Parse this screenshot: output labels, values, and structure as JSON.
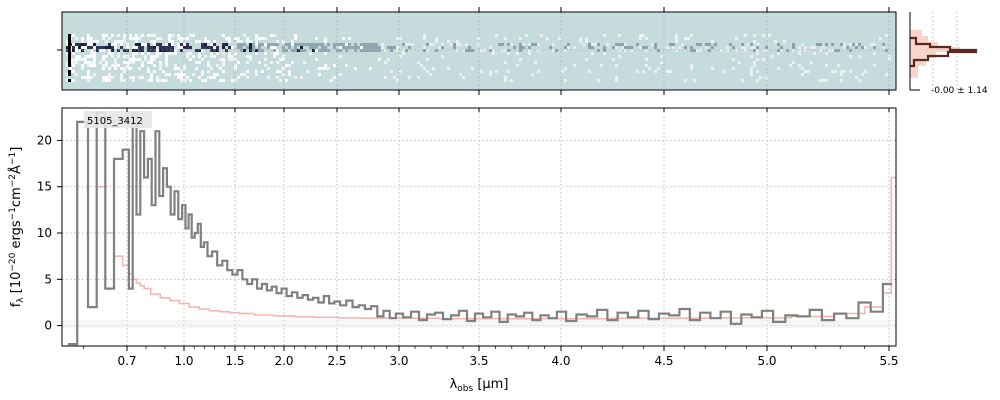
{
  "chart_data": {
    "type": "line",
    "object_label": "5105_3412",
    "xlabel": "λobs [μm]",
    "ylabel": "fλ [10−20 ergs−1cm−2Å−1]",
    "x_scale": "nonlinear (sqrt-like)",
    "xlim": [
      0.55,
      5.53
    ],
    "ylim": [
      -2.2,
      23.5
    ],
    "x_ticks": [
      0.7,
      1.0,
      1.5,
      2.0,
      2.5,
      3.0,
      3.5,
      4.0,
      4.5,
      5.0,
      5.5
    ],
    "x_tick_labels": [
      "0.7",
      "1.0",
      "1.5",
      "2.0",
      "2.5",
      "3.0",
      "3.5",
      "4.0",
      "4.5",
      "5.0",
      "5.5"
    ],
    "y_ticks": [
      0,
      5,
      10,
      15,
      20
    ],
    "y_tick_labels": [
      "0",
      "5",
      "10",
      "15",
      "20"
    ],
    "grid": true,
    "colors": {
      "flux": "#808080",
      "error": "#f4a9a4",
      "spectrum2d_bg": "#c6dbdb",
      "profile": "#5a2a22",
      "profile_fill": "#f7c9bd"
    },
    "series": [
      {
        "style": "steps",
        "color": "#808080",
        "x": [
          0.57,
          0.6,
          0.62,
          0.64,
          0.66,
          0.68,
          0.7,
          0.72,
          0.74,
          0.76,
          0.78,
          0.8,
          0.82,
          0.84,
          0.86,
          0.88,
          0.9,
          0.92,
          0.94,
          0.96,
          0.98,
          1.0,
          1.03,
          1.06,
          1.09,
          1.12,
          1.15,
          1.18,
          1.21,
          1.25,
          1.3,
          1.35,
          1.4,
          1.45,
          1.5,
          1.55,
          1.6,
          1.65,
          1.7,
          1.75,
          1.8,
          1.85,
          1.9,
          1.95,
          2.0,
          2.05,
          2.1,
          2.15,
          2.2,
          2.25,
          2.3,
          2.35,
          2.4,
          2.45,
          2.5,
          2.55,
          2.6,
          2.65,
          2.7,
          2.75,
          2.8,
          2.85,
          2.9,
          2.95,
          3.0,
          3.05,
          3.1,
          3.15,
          3.2,
          3.25,
          3.3,
          3.35,
          3.4,
          3.45,
          3.5,
          3.55,
          3.6,
          3.65,
          3.7,
          3.75,
          3.8,
          3.85,
          3.9,
          3.95,
          4.0,
          4.05,
          4.1,
          4.15,
          4.2,
          4.25,
          4.3,
          4.35,
          4.4,
          4.45,
          4.5,
          4.55,
          4.6,
          4.65,
          4.7,
          4.75,
          4.8,
          4.85,
          4.9,
          4.95,
          5.0,
          5.05,
          5.1,
          5.15,
          5.2,
          5.25,
          5.3,
          5.35,
          5.4,
          5.45,
          5.5
        ],
        "y": [
          -2.0,
          22.0,
          2.0,
          23.0,
          4.0,
          18.0,
          19.0,
          4.0,
          23.0,
          12.0,
          21.0,
          16.0,
          18.0,
          13.0,
          21.0,
          14.0,
          17.0,
          15.0,
          12.0,
          14.5,
          11.5,
          13.0,
          10.5,
          12.0,
          9.5,
          10.0,
          11.0,
          8.5,
          9.0,
          7.5,
          8.0,
          6.5,
          7.0,
          6.0,
          5.5,
          6.0,
          5.0,
          4.5,
          5.0,
          4.0,
          4.5,
          3.8,
          4.2,
          3.5,
          4.0,
          3.2,
          3.6,
          3.0,
          3.3,
          2.8,
          3.0,
          2.5,
          3.2,
          2.4,
          2.6,
          2.2,
          2.7,
          2.0,
          2.2,
          1.8,
          2.1,
          1.0,
          1.6,
          0.8,
          1.3,
          0.9,
          1.5,
          0.6,
          1.2,
          1.4,
          0.7,
          1.1,
          1.6,
          0.5,
          1.3,
          0.9,
          1.5,
          0.4,
          1.2,
          1.0,
          1.4,
          0.6,
          1.1,
          0.8,
          1.5,
          0.5,
          1.2,
          1.0,
          1.7,
          0.6,
          1.4,
          0.9,
          1.6,
          0.7,
          1.3,
          1.1,
          1.8,
          0.6,
          1.4,
          0.8,
          1.5,
          0.2,
          1.2,
          0.9,
          1.6,
          0.4,
          1.1,
          1.0,
          1.7,
          0.6,
          1.3,
          0.8,
          2.5,
          1.5,
          4.5
        ]
      },
      {
        "style": "steps",
        "color": "#f4a9a4",
        "x": [
          0.64,
          0.66,
          0.68,
          0.7,
          0.72,
          0.74,
          0.76,
          0.78,
          0.8,
          0.85,
          0.9,
          0.95,
          1.0,
          1.1,
          1.2,
          1.3,
          1.4,
          1.5,
          1.6,
          1.8,
          2.0,
          2.2,
          2.4,
          2.6,
          2.8,
          3.0,
          3.5,
          4.0,
          4.5,
          5.0,
          5.2,
          5.35,
          5.45,
          5.5,
          5.52
        ],
        "y": [
          15.0,
          10.0,
          7.5,
          6.5,
          5.6,
          5.0,
          4.6,
          4.3,
          4.0,
          3.4,
          3.0,
          2.7,
          2.4,
          2.0,
          1.8,
          1.6,
          1.5,
          1.4,
          1.3,
          1.15,
          1.05,
          0.95,
          0.9,
          0.85,
          0.8,
          0.8,
          0.75,
          0.75,
          0.8,
          0.85,
          1.0,
          1.3,
          2.0,
          3.5,
          16.0
        ]
      }
    ],
    "profile_panel": {
      "label": "-0.00 ± 1.14"
    }
  }
}
